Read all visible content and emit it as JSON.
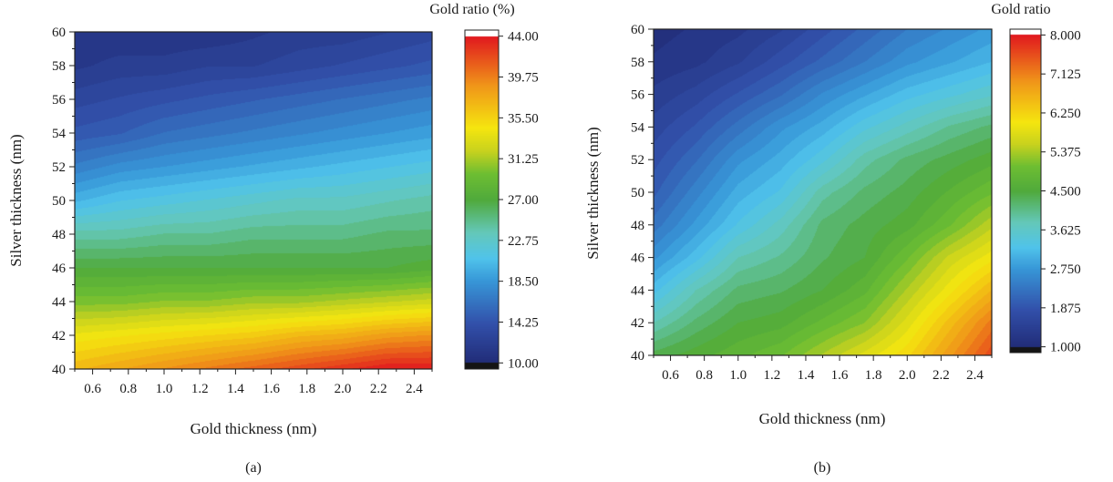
{
  "chart_data": [
    {
      "type": "heatmap",
      "panel_label": "(a)",
      "xlabel": "Gold thickness (nm)",
      "ylabel": "Silver thickness (nm)",
      "colorbar_title": "Gold ratio (%)",
      "xlim": [
        0.5,
        2.5
      ],
      "ylim": [
        40,
        60
      ],
      "x_ticks": [
        "0.6",
        "0.8",
        "1.0",
        "1.2",
        "1.4",
        "1.6",
        "1.8",
        "2.0",
        "2.2",
        "2.4"
      ],
      "y_ticks": [
        "40",
        "42",
        "44",
        "46",
        "48",
        "50",
        "52",
        "54",
        "56",
        "58",
        "60"
      ],
      "colorbar_ticks": [
        "44.00",
        "39.75",
        "35.50",
        "31.25",
        "27.00",
        "22.75",
        "18.50",
        "14.25",
        "10.00"
      ],
      "zlim": [
        10,
        44
      ],
      "x": [
        0.5,
        0.75,
        1.0,
        1.25,
        1.5,
        1.75,
        2.0,
        2.25,
        2.5
      ],
      "y": [
        40,
        42,
        44,
        46,
        48,
        50,
        52,
        54,
        56,
        58,
        60
      ],
      "z": [
        [
          37,
          38,
          39,
          40,
          41,
          42,
          43,
          44,
          44
        ],
        [
          34,
          34.5,
          35,
          35.5,
          36,
          37,
          37.5,
          38.5,
          39
        ],
        [
          30,
          30,
          30.5,
          30.5,
          31,
          31,
          31.5,
          32,
          32.5
        ],
        [
          27,
          27,
          27,
          27,
          27,
          27,
          27,
          27,
          27.5
        ],
        [
          24,
          24,
          24.5,
          24.5,
          25,
          25,
          25,
          25.5,
          25.5
        ],
        [
          20,
          21,
          21.5,
          22,
          22.5,
          23,
          23,
          23.5,
          24
        ],
        [
          17,
          18,
          18.5,
          19,
          19.5,
          20,
          20.5,
          21,
          21.5
        ],
        [
          14.5,
          15,
          16,
          16.5,
          17,
          17.5,
          18,
          18.5,
          19
        ],
        [
          13,
          13.5,
          14,
          14.5,
          15,
          15.5,
          16,
          16.5,
          17
        ],
        [
          11.5,
          12,
          12,
          12.5,
          12.5,
          13,
          13.5,
          14,
          14.5
        ],
        [
          11,
          11,
          11,
          11,
          11.5,
          12,
          12,
          12.5,
          13
        ]
      ]
    },
    {
      "type": "heatmap",
      "panel_label": "(b)",
      "xlabel": "Gold thickness (nm)",
      "ylabel": "Silver thickness (nm)",
      "colorbar_title": "Gold ratio",
      "xlim": [
        0.5,
        2.5
      ],
      "ylim": [
        40,
        60
      ],
      "x_ticks": [
        "0.6",
        "0.8",
        "1.0",
        "1.2",
        "1.4",
        "1.6",
        "1.8",
        "2.0",
        "2.2",
        "2.4"
      ],
      "y_ticks": [
        "40",
        "42",
        "44",
        "46",
        "48",
        "50",
        "52",
        "54",
        "56",
        "58",
        "60"
      ],
      "colorbar_ticks": [
        "8.000",
        "7.125",
        "6.250",
        "5.375",
        "4.500",
        "3.625",
        "2.750",
        "1.875",
        "1.000"
      ],
      "zlim": [
        1,
        8
      ],
      "x": [
        0.5,
        0.75,
        1.0,
        1.25,
        1.5,
        1.75,
        2.0,
        2.25,
        2.5
      ],
      "y": [
        40,
        42,
        44,
        46,
        48,
        50,
        52,
        54,
        56,
        58,
        60
      ],
      "z": [
        [
          4.4,
          4.6,
          4.8,
          5.0,
          5.4,
          5.8,
          6.2,
          6.9,
          7.6
        ],
        [
          3.8,
          4.2,
          4.5,
          4.6,
          4.9,
          5.2,
          5.8,
          6.5,
          7.2
        ],
        [
          3.2,
          3.8,
          4.2,
          4.3,
          4.5,
          4.8,
          5.4,
          6.0,
          6.6
        ],
        [
          2.7,
          3.2,
          3.8,
          4.0,
          4.3,
          4.5,
          5.0,
          5.6,
          6.0
        ],
        [
          2.3,
          2.8,
          3.3,
          3.7,
          4.2,
          4.4,
          4.6,
          5.0,
          5.5
        ],
        [
          2.0,
          2.5,
          3.0,
          3.3,
          3.9,
          4.2,
          4.4,
          4.7,
          5.0
        ],
        [
          1.8,
          2.2,
          2.7,
          3.0,
          3.4,
          3.9,
          4.2,
          4.4,
          4.6
        ],
        [
          1.6,
          1.9,
          2.3,
          2.7,
          3.0,
          3.4,
          3.7,
          4.0,
          4.2
        ],
        [
          1.4,
          1.6,
          1.9,
          2.2,
          2.6,
          2.9,
          3.2,
          3.4,
          3.6
        ],
        [
          1.2,
          1.3,
          1.5,
          1.8,
          2.1,
          2.4,
          2.7,
          2.9,
          3.1
        ],
        [
          1.1,
          1.2,
          1.3,
          1.5,
          1.8,
          2.1,
          2.4,
          2.6,
          2.8
        ]
      ]
    }
  ]
}
